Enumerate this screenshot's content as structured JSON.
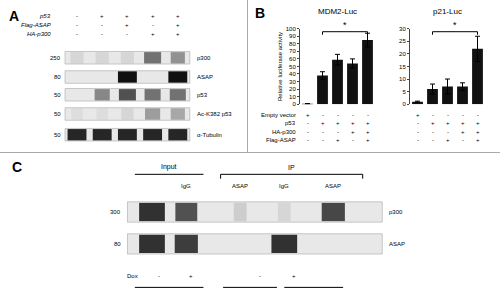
{
  "chart_data": [
    {
      "type": "blot",
      "panel": "A",
      "color": "#111111",
      "conditions": [
        {
          "name": "p53",
          "values": [
            "-",
            "+",
            "+",
            "+",
            "+"
          ]
        },
        {
          "name": "Flag-ASAP",
          "values": [
            "-",
            "-",
            "+",
            "-",
            "+"
          ]
        },
        {
          "name": "HA-p300",
          "values": [
            "-",
            "-",
            "-",
            "+",
            "+"
          ]
        }
      ],
      "rows": [
        {
          "name": "p300",
          "mw": 250,
          "intensities": [
            0.08,
            0.08,
            0.08,
            0.55,
            0.4
          ],
          "widths": [
            0.7,
            0.7,
            0.7,
            0.9,
            0.75
          ]
        },
        {
          "name": "ASAP",
          "mw": 80,
          "intensities": [
            0.0,
            0.0,
            1.0,
            0.0,
            1.0
          ],
          "widths": [
            0.0,
            0.0,
            1.0,
            0.0,
            1.0
          ]
        },
        {
          "name": "p53",
          "mw": 50,
          "intensities": [
            0.0,
            0.45,
            0.7,
            0.55,
            0.55
          ],
          "widths": [
            0.0,
            0.8,
            0.9,
            0.85,
            0.85
          ]
        },
        {
          "name": "Ac-K382 p53",
          "mw": 50,
          "intensities": [
            0.05,
            0.05,
            0.08,
            0.35,
            0.3
          ],
          "widths": [
            0.6,
            0.6,
            0.65,
            0.8,
            0.75
          ]
        },
        {
          "name": "α-Tubulin",
          "mw": 50,
          "intensities": [
            0.9,
            0.9,
            0.9,
            0.9,
            0.9
          ],
          "widths": [
            1.0,
            1.0,
            1.0,
            1.0,
            1.0
          ]
        }
      ]
    },
    {
      "type": "bar",
      "panel": "B",
      "title": "MDM2-Luc",
      "y_label": "Relative luciferase activity",
      "categories": [
        null,
        null,
        null,
        null,
        null
      ],
      "values": [
        0.5,
        38,
        59,
        54,
        85
      ],
      "errors": [
        0.3,
        5,
        7,
        6,
        9
      ],
      "color": "#111111",
      "ylim": [
        0,
        100
      ],
      "yticks": [
        0,
        10,
        20,
        30,
        40,
        50,
        60,
        70,
        80,
        90,
        100
      ],
      "grid": false,
      "tick_labels": "y",
      "significance": {
        "bars": [
          1,
          4
        ],
        "text": "*"
      },
      "conditions": [
        {
          "name": "Empty vector",
          "values": [
            "+",
            "-",
            "-",
            "-",
            "-"
          ]
        },
        {
          "name": "p53",
          "values": [
            "-",
            "+",
            "+",
            "+",
            "+"
          ]
        },
        {
          "name": "HA-p300",
          "values": [
            "-",
            "-",
            "-",
            "+",
            "+"
          ]
        },
        {
          "name": "Flag-ASAP",
          "values": [
            "-",
            "-",
            "+",
            "-",
            "+"
          ]
        }
      ]
    },
    {
      "type": "bar",
      "title": "p21-Luc",
      "categories": [
        null,
        null,
        null,
        null,
        null
      ],
      "values": [
        1,
        6,
        7,
        7,
        22
      ],
      "errors": [
        0.2,
        2,
        3,
        1.5,
        5
      ],
      "color": "#111111",
      "ylim": [
        0,
        30
      ],
      "yticks": [
        0,
        5,
        10,
        15,
        20,
        25,
        30
      ],
      "grid": false,
      "tick_labels": "y",
      "significance": {
        "bars": [
          1,
          4
        ],
        "text": "*"
      },
      "conditions": [
        [
          "+",
          "-",
          "-",
          "-",
          "-"
        ],
        [
          "-",
          "+",
          "+",
          "+",
          "+"
        ],
        [
          "-",
          "-",
          "-",
          "+",
          "+"
        ],
        [
          "-",
          "-",
          "+",
          "-",
          "+"
        ]
      ]
    },
    {
      "type": "blot",
      "panel": "C",
      "color": "#111111",
      "columns": [
        null,
        "IgG",
        "ASAP",
        "IgG",
        "ASAP"
      ],
      "groups": [
        "Input",
        "IP"
      ],
      "rows": [
        {
          "name": "p300",
          "mw": 300,
          "intensities": [
            0.85,
            0.7,
            0.12,
            0.08,
            0.75
          ],
          "widths": [
            1.0,
            0.85,
            0.5,
            0.5,
            0.9
          ]
        },
        {
          "name": "ASAP",
          "mw": 80,
          "intensities": [
            0.85,
            0.8,
            0.0,
            0.85,
            0.0
          ],
          "widths": [
            1.0,
            0.9,
            0.0,
            1.0,
            0.0
          ]
        }
      ],
      "dox": {
        "name": "Dox",
        "values": [
          "-",
          "+",
          "-",
          "+"
        ]
      }
    }
  ]
}
